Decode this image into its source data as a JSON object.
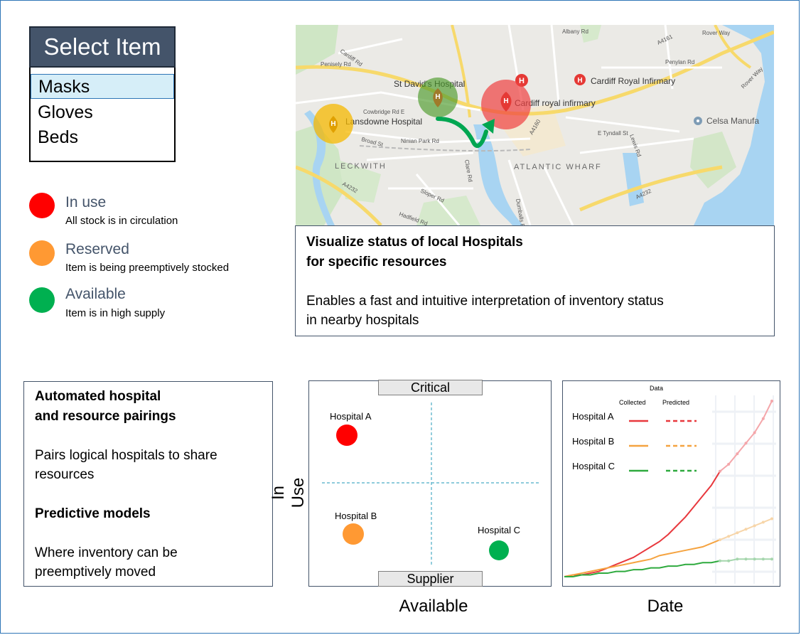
{
  "select": {
    "header": "Select Item",
    "options": [
      "Masks",
      "Gloves",
      "Beds"
    ],
    "selected_index": 0
  },
  "legend": [
    {
      "title": "In use",
      "desc": "All stock is in circulation",
      "color": "#ff0000"
    },
    {
      "title": "Reserved",
      "desc": "Item is being preemptively stocked",
      "color": "#ff9933"
    },
    {
      "title": "Available",
      "desc": "Item is in high supply",
      "color": "#00b050"
    }
  ],
  "map": {
    "places": [
      "St David's Hospital",
      "Cardiff Royal Infirmary",
      "Cardiff royal infirmary",
      "Lansdowne Hospital",
      "Celsa Manufa",
      "LECKWITH",
      "ATLANTIC WHARF"
    ],
    "streets": [
      "Albany Rd",
      "Rover Way",
      "A4161",
      "Penylan Rd",
      "Penisely Rd",
      "Cardiff Rd",
      "Cowbridge Rd E",
      "Broad St",
      "Ninian Park Rd",
      "Clare Rd",
      "A4160",
      "E Tyndall St",
      "Lewis Rd",
      "A4232",
      "A4232",
      "Sloper Rd",
      "Dumballs Rd",
      "Hadfield Rd",
      "Rover Way"
    ]
  },
  "info_box": {
    "title_line1": "Visualize status of local Hospitals",
    "title_line2": "for specific resources",
    "body_line1": "Enables a fast and intuitive interpretation of inventory status",
    "body_line2": "in nearby hospitals"
  },
  "features_box": {
    "heading1_line1": "Automated hospital",
    "heading1_line2": "and resource pairings",
    "text1_line1": "Pairs logical hospitals to share",
    "text1_line2": "resources",
    "heading2": "Predictive models",
    "text2_line1": "Where inventory can be",
    "text2_line2": "preemptively moved"
  },
  "quadrant": {
    "top_label": "Critical",
    "bottom_label": "Supplier",
    "y_label": "In Use",
    "x_label": "Available",
    "points": [
      {
        "name": "Hospital A",
        "color": "#ff0000"
      },
      {
        "name": "Hospital B",
        "color": "#ff9933"
      },
      {
        "name": "Hospital C",
        "color": "#00b050"
      }
    ]
  },
  "line_chart": {
    "legend_title": "Data",
    "col_collected": "Collected",
    "col_predicted": "Predicted",
    "x_label": "Date",
    "series": [
      {
        "name": "Hospital A",
        "color": "#e8383d",
        "pred_color": "#f4a6aa"
      },
      {
        "name": "Hospital B",
        "color": "#f5a340",
        "pred_color": "#f7d5a8"
      },
      {
        "name": "Hospital C",
        "color": "#2eaa3e",
        "pred_color": "#a5d6ad"
      }
    ]
  },
  "chart_data": {
    "type": "line",
    "xlabel": "Date",
    "ylabel": "",
    "legend_title": "Data",
    "series": [
      {
        "name": "Hospital A",
        "collected": [
          0,
          1,
          1,
          2,
          3,
          5,
          7,
          9,
          11,
          14,
          17,
          20,
          24,
          29,
          34,
          40,
          46,
          52,
          60
        ],
        "predicted": [
          60,
          64,
          70,
          76,
          82,
          90,
          100
        ]
      },
      {
        "name": "Hospital B",
        "collected": [
          0,
          1,
          2,
          3,
          4,
          5,
          6,
          7,
          8,
          9,
          10,
          12,
          13,
          14,
          15,
          16,
          17,
          19,
          21
        ],
        "predicted": [
          21,
          23,
          25,
          27,
          29,
          31,
          33
        ]
      },
      {
        "name": "Hospital C",
        "collected": [
          0,
          0,
          1,
          1,
          2,
          2,
          3,
          3,
          4,
          4,
          5,
          5,
          6,
          6,
          7,
          7,
          8,
          8,
          9
        ],
        "predicted": [
          9,
          9,
          10,
          10,
          10,
          10,
          10
        ]
      }
    ]
  }
}
